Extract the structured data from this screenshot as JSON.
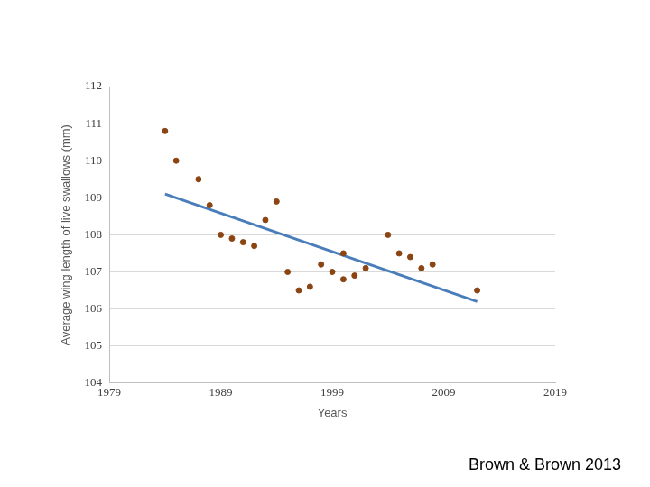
{
  "chart_data": {
    "type": "scatter",
    "xlabel": "Years",
    "ylabel": "Average wing length of live swallows (mm)",
    "xlim": [
      1979,
      2019
    ],
    "xticks": [
      1979,
      1989,
      1999,
      2009,
      2019
    ],
    "ylim": [
      104,
      112
    ],
    "yticks": [
      104,
      105,
      106,
      107,
      108,
      109,
      110,
      111,
      112
    ],
    "grid": true,
    "annotations": [
      "Brown & Brown 2013"
    ],
    "series": [
      {
        "type": "scatter",
        "color": "#8b4513",
        "marker": "circle",
        "x": [
          1984,
          1985,
          1987,
          1988,
          1989,
          1990,
          1991,
          1992,
          1993,
          1994,
          1995,
          1996,
          1997,
          1998,
          1999,
          2000,
          2000,
          2001,
          2002,
          2004,
          2005,
          2006,
          2007,
          2008,
          2012
        ],
        "values": [
          110.8,
          110.0,
          109.5,
          108.8,
          108.0,
          107.9,
          107.8,
          107.7,
          108.4,
          108.9,
          107.0,
          106.5,
          106.6,
          107.2,
          107.0,
          107.5,
          106.8,
          106.9,
          107.1,
          108.0,
          107.5,
          107.4,
          107.1,
          107.2,
          106.5
        ]
      },
      {
        "type": "line",
        "color": "#4a7ebb",
        "line_style": "solid",
        "x": [
          1984,
          2012
        ],
        "values": [
          109.1,
          106.2
        ]
      }
    ]
  }
}
